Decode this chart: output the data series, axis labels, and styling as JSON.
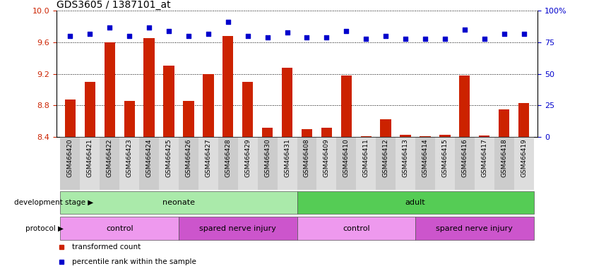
{
  "title": "GDS3605 / 1387101_at",
  "samples": [
    "GSM466420",
    "GSM466421",
    "GSM466422",
    "GSM466423",
    "GSM466424",
    "GSM466425",
    "GSM466426",
    "GSM466427",
    "GSM466428",
    "GSM466429",
    "GSM466430",
    "GSM466431",
    "GSM466408",
    "GSM466409",
    "GSM466410",
    "GSM466411",
    "GSM466412",
    "GSM466413",
    "GSM466414",
    "GSM466415",
    "GSM466416",
    "GSM466417",
    "GSM466418",
    "GSM466419"
  ],
  "transformed_count": [
    8.87,
    9.1,
    9.6,
    8.86,
    9.65,
    9.3,
    8.86,
    9.2,
    9.68,
    9.1,
    8.52,
    9.28,
    8.5,
    8.52,
    9.18,
    8.41,
    8.62,
    8.43,
    8.41,
    8.43,
    9.18,
    8.42,
    8.75,
    8.83
  ],
  "percentile_rank": [
    80,
    82,
    87,
    80,
    87,
    84,
    80,
    82,
    91,
    80,
    79,
    83,
    79,
    79,
    84,
    78,
    80,
    78,
    78,
    78,
    85,
    78,
    82,
    82
  ],
  "ylim_left": [
    8.4,
    10.0
  ],
  "ylim_right": [
    0,
    100
  ],
  "yticks_left": [
    8.4,
    8.8,
    9.2,
    9.6,
    10.0
  ],
  "yticks_right": [
    0,
    25,
    50,
    75,
    100
  ],
  "bar_color": "#cc2200",
  "dot_color": "#0000cc",
  "title_fontsize": 10,
  "tick_label_fontsize": 6.5,
  "ytick_fontsize": 8,
  "axis_tick_color_left": "#cc2200",
  "axis_tick_color_right": "#0000cc",
  "development_stage_groups": [
    {
      "label": "neonate",
      "start": 0,
      "end": 11,
      "color": "#aaeaaa"
    },
    {
      "label": "adult",
      "start": 12,
      "end": 23,
      "color": "#55cc55"
    }
  ],
  "protocol_groups": [
    {
      "label": "control",
      "start": 0,
      "end": 5,
      "color": "#ee99ee"
    },
    {
      "label": "spared nerve injury",
      "start": 6,
      "end": 11,
      "color": "#cc55cc"
    },
    {
      "label": "control",
      "start": 12,
      "end": 17,
      "color": "#ee99ee"
    },
    {
      "label": "spared nerve injury",
      "start": 18,
      "end": 23,
      "color": "#cc55cc"
    }
  ],
  "row_label_dev": "development stage",
  "row_label_proto": "protocol",
  "xtick_bg_even": "#cccccc",
  "xtick_bg_odd": "#dddddd",
  "legend_items": [
    {
      "color": "#cc2200",
      "label": "transformed count"
    },
    {
      "color": "#0000cc",
      "label": "percentile rank within the sample"
    }
  ]
}
